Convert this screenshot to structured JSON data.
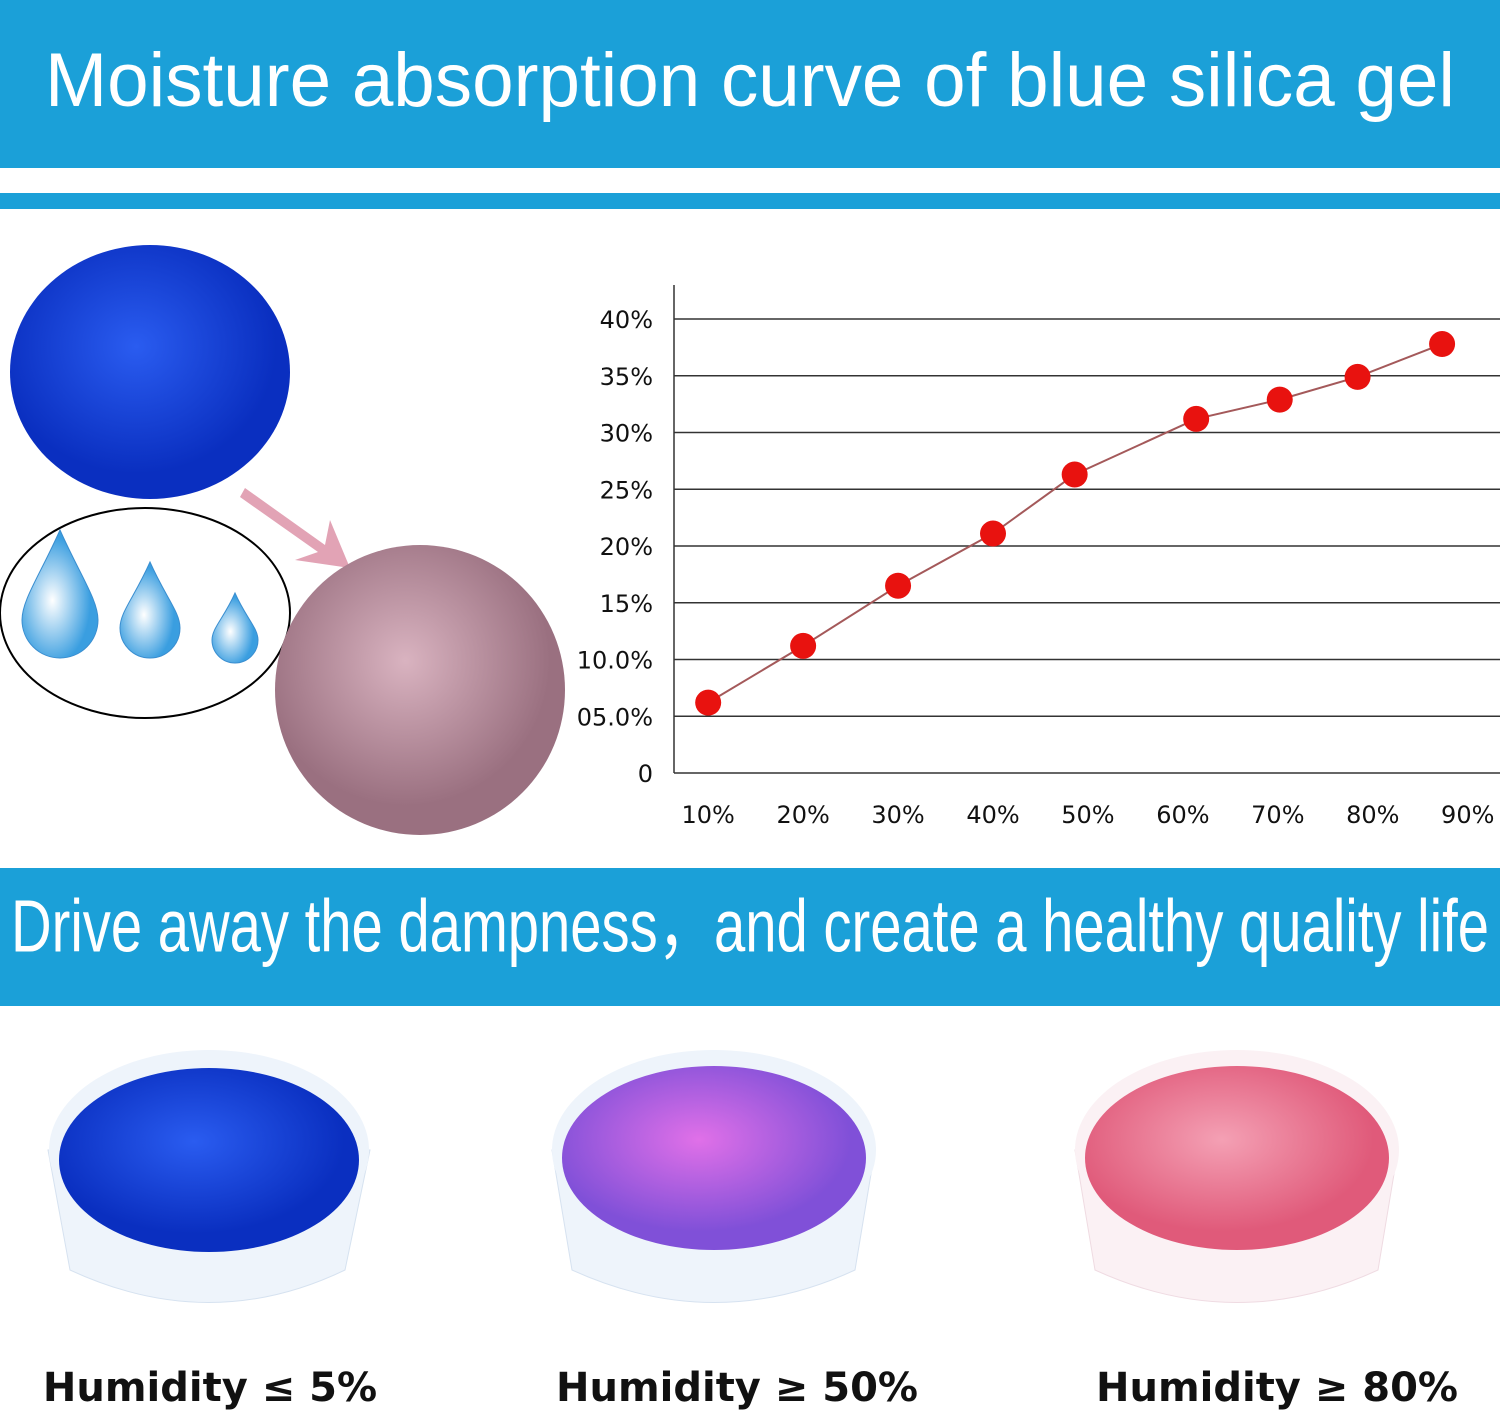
{
  "title": "Moisture absorption curve of blue silica gel",
  "chart_data": {
    "type": "line",
    "x": [
      10,
      20,
      30,
      40,
      48.6,
      61.4,
      70.2,
      78.4,
      87.3
    ],
    "values": [
      6.2,
      11.2,
      16.5,
      21.1,
      26.3,
      31.2,
      32.9,
      34.9,
      37.8
    ],
    "color": "#e8120f",
    "line_color": "#a4595a",
    "xlim": [
      6.4,
      93.4
    ],
    "xticks": [
      {
        "value": 10,
        "label": "10%"
      },
      {
        "value": 20,
        "label": "20%"
      },
      {
        "value": 30,
        "label": "30%"
      },
      {
        "value": 40,
        "label": "40%"
      },
      {
        "value": 50,
        "label": "50%"
      },
      {
        "value": 60,
        "label": "60%"
      },
      {
        "value": 70,
        "label": "70%"
      },
      {
        "value": 80,
        "label": "80%"
      },
      {
        "value": 90,
        "label": "90%"
      }
    ],
    "ylim": [
      0,
      43
    ],
    "yticks": [
      0,
      {
        "value": 5,
        "label": "05.0%"
      },
      {
        "value": 10,
        "label": "10.0%"
      },
      {
        "value": 15,
        "label": "15%"
      },
      {
        "value": 20,
        "label": "20%"
      },
      {
        "value": 25,
        "label": "25%"
      },
      {
        "value": 30,
        "label": "30%"
      },
      {
        "value": 35,
        "label": "35%"
      },
      {
        "value": 40,
        "label": "40%"
      }
    ],
    "grid": true
  },
  "slogan": "Drive away the dampness，and create a healthy quality life",
  "samples": [
    "Humidity ≤ 5%",
    "Humidity ≥ 50%",
    "Humidity ≥ 80%"
  ]
}
